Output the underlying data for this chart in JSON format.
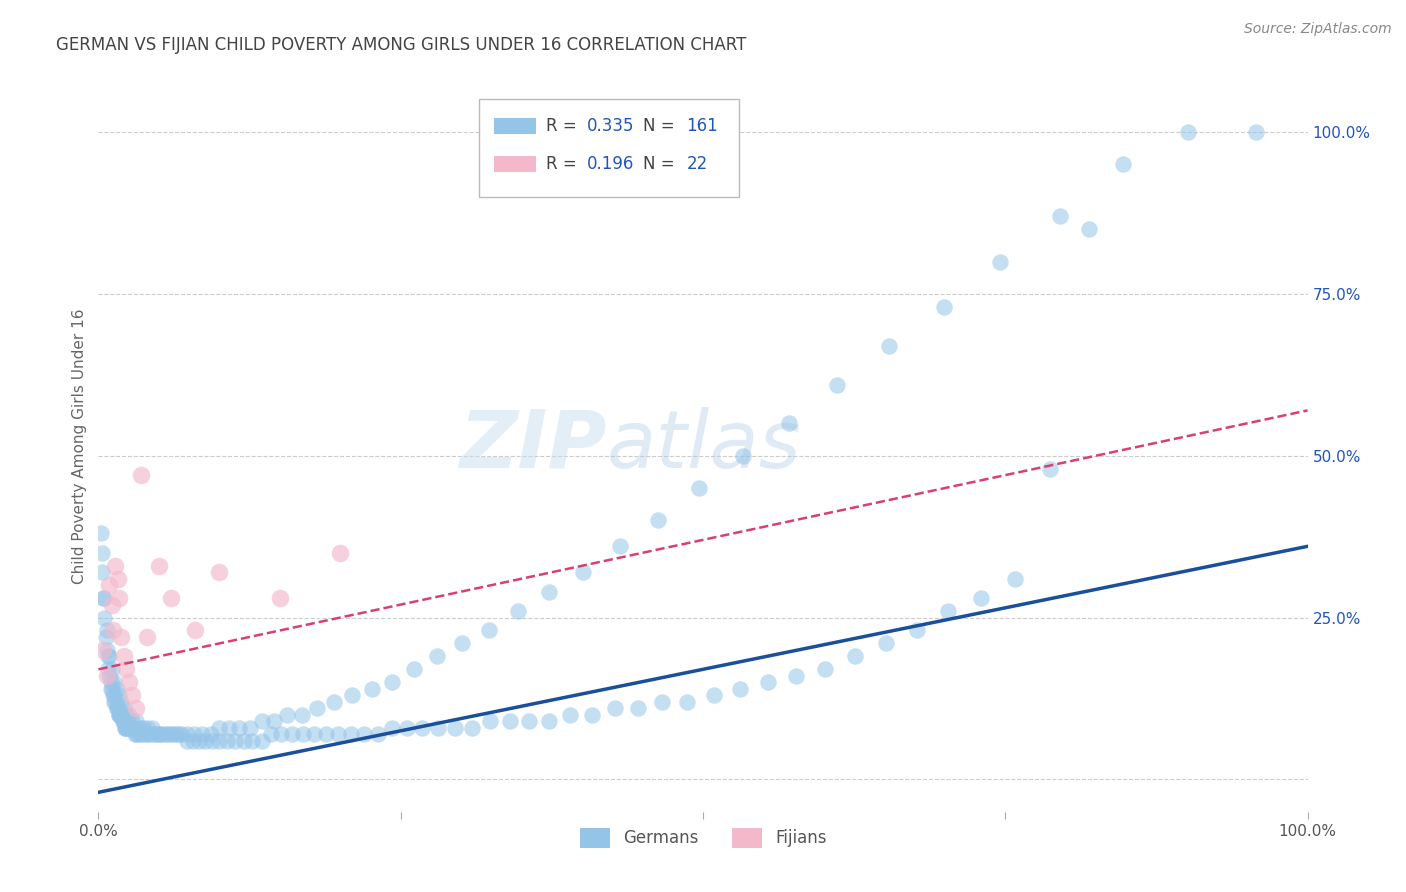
{
  "title": "GERMAN VS FIJIAN CHILD POVERTY AMONG GIRLS UNDER 16 CORRELATION CHART",
  "source": "Source: ZipAtlas.com",
  "ylabel": "Child Poverty Among Girls Under 16",
  "xlim": [
    0,
    1
  ],
  "ylim": [
    -0.05,
    1.08
  ],
  "y_ticks": [
    0.0,
    0.25,
    0.5,
    0.75,
    1.0
  ],
  "y_tick_labels": [
    "",
    "25.0%",
    "50.0%",
    "75.0%",
    "100.0%"
  ],
  "background_color": "#ffffff",
  "german_color": "#94c4e8",
  "fijian_color": "#f4b8cb",
  "german_line_color": "#1a4f9c",
  "fijian_line_color": "#d94070",
  "german_R": 0.335,
  "german_N": 161,
  "fijian_R": 0.196,
  "fijian_N": 22,
  "title_color": "#444444",
  "source_color": "#888888",
  "grid_color": "#cccccc",
  "watermark_zip": "ZIP",
  "watermark_atlas": "atlas",
  "stat_color": "#2255bb",
  "legend_text_color": "#444444",
  "german_x": [
    0.002,
    0.003,
    0.004,
    0.005,
    0.006,
    0.007,
    0.008,
    0.008,
    0.009,
    0.01,
    0.01,
    0.011,
    0.012,
    0.013,
    0.013,
    0.014,
    0.015,
    0.015,
    0.016,
    0.017,
    0.017,
    0.018,
    0.018,
    0.019,
    0.02,
    0.02,
    0.021,
    0.021,
    0.022,
    0.022,
    0.023,
    0.024,
    0.025,
    0.026,
    0.027,
    0.028,
    0.029,
    0.03,
    0.031,
    0.033,
    0.035,
    0.037,
    0.039,
    0.041,
    0.043,
    0.046,
    0.049,
    0.052,
    0.056,
    0.06,
    0.064,
    0.068,
    0.073,
    0.078,
    0.083,
    0.088,
    0.094,
    0.1,
    0.106,
    0.113,
    0.12,
    0.127,
    0.135,
    0.143,
    0.151,
    0.16,
    0.169,
    0.178,
    0.188,
    0.198,
    0.209,
    0.22,
    0.231,
    0.243,
    0.255,
    0.268,
    0.281,
    0.295,
    0.309,
    0.324,
    0.34,
    0.356,
    0.373,
    0.39,
    0.408,
    0.427,
    0.446,
    0.466,
    0.487,
    0.509,
    0.531,
    0.554,
    0.577,
    0.601,
    0.626,
    0.651,
    0.677,
    0.703,
    0.73,
    0.758,
    0.003,
    0.005,
    0.007,
    0.009,
    0.011,
    0.013,
    0.015,
    0.017,
    0.019,
    0.021,
    0.023,
    0.025,
    0.028,
    0.031,
    0.034,
    0.037,
    0.04,
    0.044,
    0.048,
    0.052,
    0.057,
    0.062,
    0.067,
    0.073,
    0.079,
    0.086,
    0.093,
    0.1,
    0.108,
    0.116,
    0.125,
    0.135,
    0.145,
    0.156,
    0.168,
    0.181,
    0.195,
    0.21,
    0.226,
    0.243,
    0.261,
    0.28,
    0.301,
    0.323,
    0.347,
    0.373,
    0.401,
    0.431,
    0.463,
    0.497,
    0.533,
    0.571,
    0.611,
    0.654,
    0.699,
    0.746,
    0.795,
    0.847,
    0.901,
    0.957,
    0.787,
    0.819
  ],
  "german_y": [
    0.38,
    0.32,
    0.28,
    0.25,
    0.22,
    0.2,
    0.19,
    0.17,
    0.16,
    0.15,
    0.14,
    0.14,
    0.13,
    0.13,
    0.12,
    0.12,
    0.11,
    0.11,
    0.11,
    0.1,
    0.1,
    0.1,
    0.1,
    0.1,
    0.09,
    0.09,
    0.09,
    0.09,
    0.08,
    0.08,
    0.08,
    0.08,
    0.08,
    0.08,
    0.08,
    0.08,
    0.08,
    0.07,
    0.07,
    0.07,
    0.07,
    0.07,
    0.07,
    0.07,
    0.07,
    0.07,
    0.07,
    0.07,
    0.07,
    0.07,
    0.07,
    0.07,
    0.06,
    0.06,
    0.06,
    0.06,
    0.06,
    0.06,
    0.06,
    0.06,
    0.06,
    0.06,
    0.06,
    0.07,
    0.07,
    0.07,
    0.07,
    0.07,
    0.07,
    0.07,
    0.07,
    0.07,
    0.07,
    0.08,
    0.08,
    0.08,
    0.08,
    0.08,
    0.08,
    0.09,
    0.09,
    0.09,
    0.09,
    0.1,
    0.1,
    0.11,
    0.11,
    0.12,
    0.12,
    0.13,
    0.14,
    0.15,
    0.16,
    0.17,
    0.19,
    0.21,
    0.23,
    0.26,
    0.28,
    0.31,
    0.35,
    0.28,
    0.23,
    0.19,
    0.17,
    0.15,
    0.14,
    0.13,
    0.12,
    0.11,
    0.1,
    0.1,
    0.09,
    0.09,
    0.08,
    0.08,
    0.08,
    0.08,
    0.07,
    0.07,
    0.07,
    0.07,
    0.07,
    0.07,
    0.07,
    0.07,
    0.07,
    0.08,
    0.08,
    0.08,
    0.08,
    0.09,
    0.09,
    0.1,
    0.1,
    0.11,
    0.12,
    0.13,
    0.14,
    0.15,
    0.17,
    0.19,
    0.21,
    0.23,
    0.26,
    0.29,
    0.32,
    0.36,
    0.4,
    0.45,
    0.5,
    0.55,
    0.61,
    0.67,
    0.73,
    0.8,
    0.87,
    0.95,
    1.0,
    1.0,
    0.48,
    0.85
  ],
  "fijian_x": [
    0.004,
    0.007,
    0.009,
    0.011,
    0.012,
    0.014,
    0.016,
    0.017,
    0.019,
    0.021,
    0.023,
    0.025,
    0.028,
    0.031,
    0.035,
    0.04,
    0.05,
    0.06,
    0.08,
    0.1,
    0.15,
    0.2
  ],
  "fijian_y": [
    0.2,
    0.16,
    0.3,
    0.27,
    0.23,
    0.33,
    0.31,
    0.28,
    0.22,
    0.19,
    0.17,
    0.15,
    0.13,
    0.11,
    0.47,
    0.22,
    0.33,
    0.28,
    0.23,
    0.32,
    0.28,
    0.35
  ],
  "german_line_y_start": -0.02,
  "german_line_y_end": 0.36,
  "fijian_line_y_start": 0.17,
  "fijian_line_y_end": 0.57
}
